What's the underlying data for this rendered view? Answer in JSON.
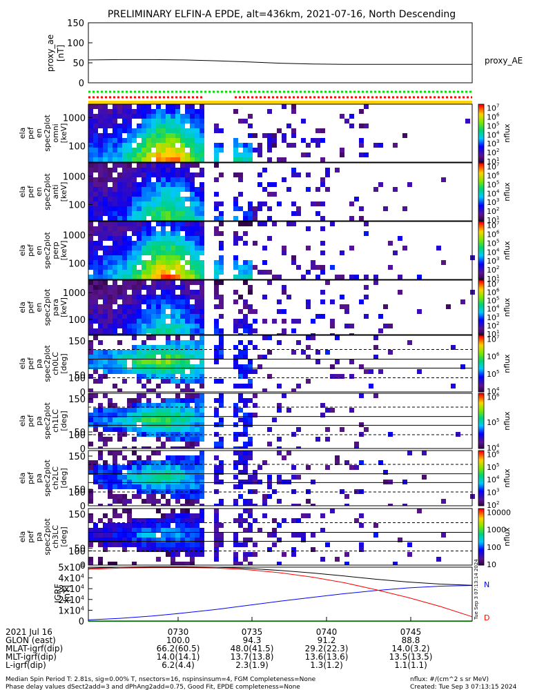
{
  "title": "PRELIMINARY ELFIN-A EPDE, alt=436km, 2021-07-16, North Descending",
  "chart_data": [
    {
      "type": "line",
      "id": "proxy_ae",
      "ylabel": [
        "proxy_ae",
        "[nT]"
      ],
      "ylim": [
        0,
        150
      ],
      "yticks": [
        "0",
        "50",
        "100",
        "150"
      ],
      "legend": "proxy_AE",
      "series": [
        {
          "values": [
            57,
            58,
            58,
            57,
            55,
            52,
            49,
            47,
            46,
            46,
            46,
            46,
            46
          ]
        }
      ]
    },
    {
      "type": "heatmap",
      "id": "en-omni",
      "ylabel": [
        "ela",
        "pef",
        "en",
        "spec2plot",
        "omni",
        "[keV]"
      ],
      "yticks": [
        "100",
        "1000"
      ],
      "colorbar": {
        "label": "nflux",
        "ticks": [
          "10^1",
          "10^2",
          "10^3",
          "10^4",
          "10^5",
          "10^6",
          "10^7"
        ]
      }
    },
    {
      "type": "heatmap",
      "id": "en-anti",
      "ylabel": [
        "ela",
        "pef",
        "en",
        "spec2plot",
        "anti",
        "[keV]"
      ],
      "yticks": [
        "100",
        "1000"
      ],
      "colorbar": {
        "label": "nflux",
        "ticks": [
          "10^1",
          "10^2",
          "10^3",
          "10^4",
          "10^5",
          "10^6",
          "10^7"
        ]
      }
    },
    {
      "type": "heatmap",
      "id": "en-perp",
      "ylabel": [
        "ela",
        "pef",
        "en",
        "spec2plot",
        "perp",
        "[keV]"
      ],
      "yticks": [
        "100",
        "1000"
      ],
      "colorbar": {
        "label": "nflux",
        "ticks": [
          "10^1",
          "10^2",
          "10^3",
          "10^4",
          "10^5",
          "10^6",
          "10^7"
        ]
      }
    },
    {
      "type": "heatmap",
      "id": "en-para",
      "ylabel": [
        "ela",
        "pef",
        "en",
        "spec2plot",
        "para",
        "[keV]"
      ],
      "yticks": [
        "100",
        "1000"
      ],
      "colorbar": {
        "label": "nflux",
        "ticks": [
          "10^1",
          "10^2",
          "10^3",
          "10^4",
          "10^5",
          "10^6",
          "10^7"
        ]
      }
    },
    {
      "type": "heatmap",
      "id": "pa-ch0",
      "ylabel": [
        "ela",
        "pef",
        "pa",
        "spec2plot",
        "ch0LC",
        "[deg]"
      ],
      "yticks": [
        "0",
        "50",
        "100",
        "150"
      ],
      "colorbar": {
        "label": "nflux",
        "ticks": [
          "10^4",
          "10^5",
          "10^6",
          "10^7"
        ]
      }
    },
    {
      "type": "heatmap",
      "id": "pa-ch1",
      "ylabel": [
        "ela",
        "pef",
        "pa",
        "spec2plot",
        "ch1LC",
        "[deg]"
      ],
      "yticks": [
        "0",
        "50",
        "100",
        "150"
      ],
      "colorbar": {
        "label": "nflux",
        "ticks": [
          "10^4",
          "10^5",
          "10^6"
        ]
      }
    },
    {
      "type": "heatmap",
      "id": "pa-ch2",
      "ylabel": [
        "ela",
        "pef",
        "pa",
        "spec2plot",
        "ch2LC",
        "[deg]"
      ],
      "yticks": [
        "0",
        "50",
        "100",
        "150"
      ],
      "colorbar": {
        "label": "nflux",
        "ticks": [
          "10^2",
          "10^3",
          "10^4",
          "10^5",
          "10^6"
        ]
      }
    },
    {
      "type": "heatmap",
      "id": "pa-ch3",
      "ylabel": [
        "ela",
        "pef",
        "pa",
        "spec2plot",
        "ch3LC",
        "[deg]"
      ],
      "yticks": [
        "0",
        "50",
        "100",
        "150"
      ],
      "colorbar": {
        "label": "nflux",
        "ticks": [
          "10",
          "100",
          "1000",
          "10000"
        ]
      }
    },
    {
      "type": "line",
      "id": "igrf",
      "ylabel": [
        "IGRF",
        "[nT]"
      ],
      "ylim": [
        0,
        50000
      ],
      "yticks": [
        "0",
        "1x10^4",
        "2x10^4",
        "3x10^4",
        "4x10^4",
        "5x10^4"
      ],
      "series": [
        {
          "name": "N",
          "color": "#0000ff",
          "values": [
            1000,
            2500,
            4600,
            7500,
            10800,
            14600,
            18400,
            22000,
            25400,
            28400,
            30800,
            32400,
            33000
          ]
        },
        {
          "name": "D",
          "color": "#ff0000",
          "values": [
            48000,
            49200,
            49600,
            49700,
            49200,
            47600,
            44800,
            40800,
            35600,
            29000,
            21800,
            13500,
            4000
          ]
        },
        {
          "color": "#000000",
          "values": [
            49000,
            50000,
            50400,
            50400,
            50000,
            48800,
            47000,
            44600,
            41800,
            38800,
            36200,
            34300,
            33200
          ]
        },
        {
          "color": "#00cc00",
          "values": [
            -400,
            -400,
            -400,
            -400,
            -400,
            -400,
            -400,
            -400,
            -400,
            -400,
            -400,
            -400,
            -400
          ]
        }
      ]
    }
  ],
  "ephemeris": {
    "date_label": "2021 Jul 16",
    "rows": [
      {
        "label": "GLON (east)",
        "values": [
          "100.0",
          "94.3",
          "91.2",
          "88.8"
        ]
      },
      {
        "label": "MLAT-igrf(dip)",
        "values": [
          "66.2(60.5)",
          "48.0(41.5)",
          "29.2(22.3)",
          "14.0(3.2)"
        ]
      },
      {
        "label": "MLT-igrf(dip)",
        "values": [
          "14.0(14.1)",
          "13.7(13.8)",
          "13.6(13.6)",
          "13.5(13.5)"
        ]
      },
      {
        "label": "L-igrf(dip)",
        "values": [
          "6.2(4.4)",
          "2.3(1.9)",
          "1.3(1.2)",
          "1.1(1.1)"
        ]
      }
    ],
    "times": [
      "0730",
      "0735",
      "0740",
      "0745"
    ]
  },
  "side_stamp": "Tue Sep  3 07:13:14 2024",
  "footer": {
    "left1": "Median Spin Period T: 2.81s, sig=0.00% T, nsectors=16, nspinsinsum=4, FGM Completeness=None",
    "left2": "Phase delay values dSect2add=3 and dPhAng2add=0.75, Good Fit, EPDE completeness=None",
    "right1": "nflux: #/(cm^2 s sr MeV)",
    "right2": "Created: Tue Sep  3 07:13:15 2024"
  }
}
